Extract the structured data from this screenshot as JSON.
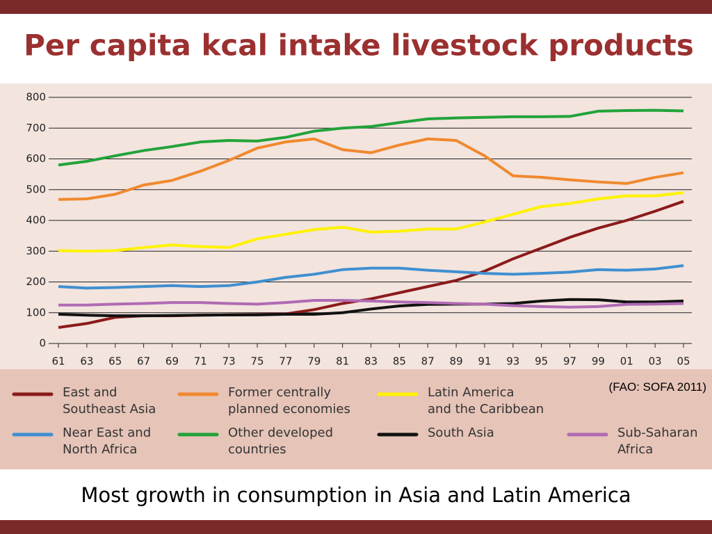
{
  "chart_data": {
    "type": "line",
    "title": "Per capita kcal intake livestock products",
    "source": "(FAO: SOFA 2011)",
    "caption": "Most growth in consumption in Asia and Latin America",
    "categories": [
      "61",
      "63",
      "65",
      "67",
      "69",
      "71",
      "73",
      "75",
      "77",
      "79",
      "81",
      "83",
      "85",
      "87",
      "89",
      "91",
      "93",
      "95",
      "97",
      "99",
      "01",
      "03",
      "05"
    ],
    "ylim": [
      0,
      800
    ],
    "yticks": [
      0,
      100,
      200,
      300,
      400,
      500,
      600,
      700,
      800
    ],
    "grid": true,
    "series": [
      {
        "name": "East and\nSoutheast Asia",
        "color": "#8b1a1a",
        "values": [
          52,
          65,
          85,
          90,
          90,
          92,
          93,
          94,
          96,
          110,
          130,
          145,
          165,
          185,
          205,
          235,
          275,
          310,
          345,
          375,
          400,
          430,
          462
        ]
      },
      {
        "name": "Former centrally\nplanned economies",
        "color": "#f0892e",
        "values": [
          468,
          470,
          485,
          515,
          530,
          560,
          595,
          635,
          655,
          665,
          630,
          620,
          645,
          665,
          660,
          610,
          545,
          540,
          532,
          525,
          520,
          540,
          555
        ]
      },
      {
        "name": "Latin America\nand the Caribbean",
        "color": "#fff200",
        "values": [
          302,
          300,
          302,
          312,
          320,
          315,
          312,
          340,
          355,
          370,
          378,
          362,
          365,
          372,
          372,
          395,
          420,
          445,
          455,
          470,
          480,
          480,
          490
        ]
      },
      {
        "name": "Near East and\nNorth Africa",
        "color": "#3f8fd0",
        "values": [
          185,
          180,
          182,
          185,
          188,
          185,
          188,
          200,
          215,
          225,
          240,
          245,
          245,
          238,
          233,
          228,
          225,
          228,
          232,
          240,
          238,
          242,
          253
        ]
      },
      {
        "name": "Other developed\ncountries",
        "color": "#22a33a",
        "values": [
          580,
          592,
          610,
          627,
          640,
          655,
          660,
          658,
          670,
          690,
          700,
          705,
          718,
          730,
          733,
          735,
          737,
          737,
          738,
          755,
          757,
          758,
          756
        ]
      },
      {
        "name": "South Asia",
        "color": "#111111",
        "values": [
          95,
          92,
          90,
          90,
          91,
          92,
          93,
          93,
          95,
          95,
          100,
          112,
          122,
          127,
          128,
          128,
          130,
          138,
          143,
          142,
          135,
          135,
          138
        ]
      },
      {
        "name": "Sub-Saharan\nAfrica",
        "color": "#b06ab3",
        "values": [
          125,
          125,
          128,
          130,
          133,
          133,
          130,
          128,
          133,
          140,
          140,
          138,
          135,
          133,
          130,
          128,
          123,
          120,
          118,
          120,
          127,
          128,
          130
        ]
      }
    ]
  }
}
